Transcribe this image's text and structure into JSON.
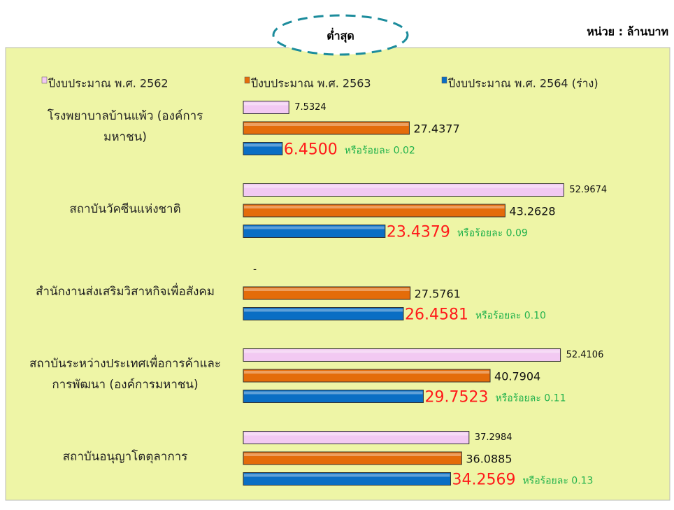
{
  "chart_data": {
    "type": "barh",
    "callout": "ต่ำสุด",
    "unit_label": "หน่วย : ล้านบาท",
    "categories": [
      "โรงพยาบาลบ้านแพ้ว (องค์การ\nมหาชน)",
      "สถาบันวัคซีนแห่งชาติ",
      "สำนักงานส่งเสริมวิสาหกิจเพื่อสังคม",
      "สถาบันระหว่างประเทศเพื่อการค้าและ\nการพัฒนา (องค์การมหาชน)",
      "สถาบันอนุญาโตตุลาการ"
    ],
    "series": [
      {
        "name": "ปีงบประมาณ พ.ศ. 2562",
        "color": "#f2c9f2",
        "values": [
          7.5324,
          52.9674,
          null,
          52.4106,
          37.2984
        ],
        "value_labels": [
          "7.5324",
          "52.9674",
          "-",
          "52.4106",
          "37.2984"
        ]
      },
      {
        "name": "ปีงบประมาณ พ.ศ. 2563",
        "color": "#e46c0a",
        "values": [
          27.4377,
          43.2628,
          27.5761,
          40.7904,
          36.0885
        ],
        "value_labels": [
          "27.4377",
          "43.2628",
          "27.5761",
          "40.7904",
          "36.0885"
        ]
      },
      {
        "name": "ปีงบประมาณ พ.ศ. 2564 (ร่าง)",
        "color": "#0a6ec4",
        "values": [
          6.45,
          23.4379,
          26.4581,
          29.7523,
          34.2569
        ],
        "value_labels": [
          "6.4500",
          "23.4379",
          "26.4581",
          "29.7523",
          "34.2569"
        ],
        "annotations": [
          "หรือร้อยละ 0.02",
          "หรือร้อยละ 0.09",
          "หรือร้อยละ 0.10",
          "หรือร้อยละ 0.11",
          "หรือร้อยละ 0.13"
        ]
      }
    ],
    "xlim": [
      0,
      55
    ],
    "legend": "top"
  }
}
